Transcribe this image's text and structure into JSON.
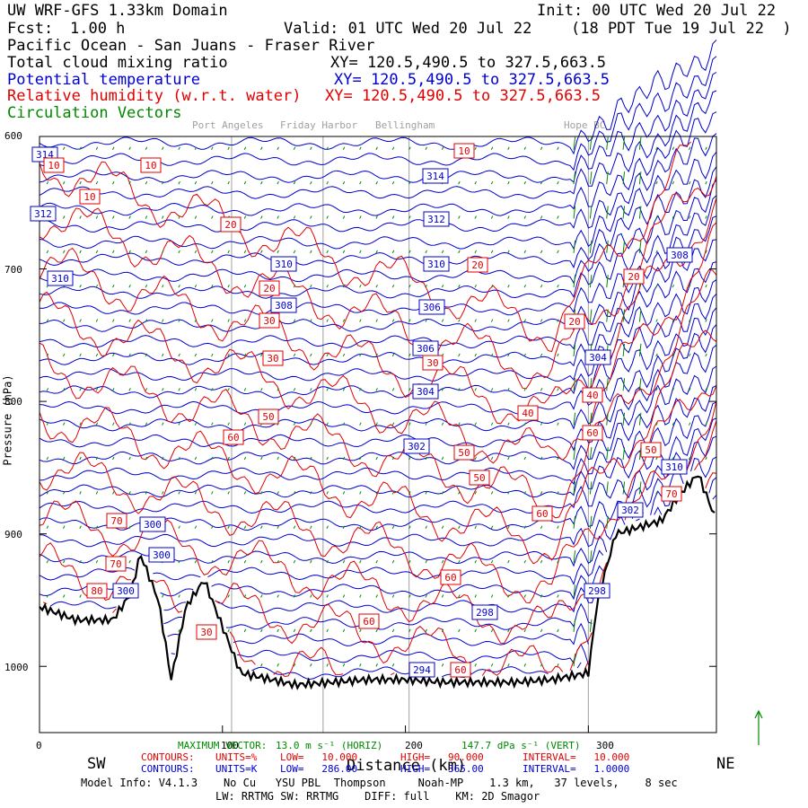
{
  "header": {
    "domain_title": "UW WRF-GFS 1.33km Domain",
    "init": "Init: 00 UTC Wed 20 Jul 22",
    "fcst_label": "Fcst:",
    "fcst_value": "1.00 h",
    "valid": "Valid: 01 UTC Wed 20 Jul 22",
    "valid_local": "(18 PDT Tue 19 Jul 22  )",
    "region": "Pacific Ocean - San Juans - Fraser River",
    "field1": "Total cloud mixing ratio",
    "field1_xy": "XY= 120.5,490.5 to 327.5,663.5",
    "field2": "Potential temperature",
    "field2_xy": "XY= 120.5,490.5 to 327.5,663.5",
    "field3": "Relative humidity (w.r.t. water)",
    "field3_xy": "XY= 120.5,490.5 to 327.5,663.5",
    "field4": "Circulation Vectors",
    "colors": {
      "field1": "#000000",
      "field2": "#0000cc",
      "field3": "#e00000",
      "field4": "#008800"
    }
  },
  "locations": {
    "port_angeles": "Port Angeles",
    "friday_harbor": "Friday Harbor",
    "bellingham": "Bellingham",
    "hope": "Hope BC"
  },
  "axis": {
    "ylabel": "Pressure (hPa)",
    "xlabel": "Distance (km)",
    "left_end": "SW",
    "right_end": "NE"
  },
  "chart_data": {
    "type": "cross-section",
    "ylim": [
      1050,
      600
    ],
    "xlim": [
      0,
      370
    ],
    "yticks": [
      "600",
      "700",
      "800",
      "900",
      "1000"
    ],
    "xticks": [
      "0",
      "100",
      "200",
      "300"
    ],
    "location_lines_km": [
      105,
      155,
      202,
      300
    ],
    "theta_contour_labels": [
      "314",
      "314",
      "312",
      "312",
      "310",
      "310",
      "310",
      "308",
      "308",
      "306",
      "306",
      "304",
      "304",
      "302",
      "300",
      "300",
      "300",
      "298",
      "298",
      "294",
      "310",
      "302"
    ],
    "rh_contour_labels": [
      "10",
      "10",
      "10",
      "10",
      "20",
      "20",
      "20",
      "20",
      "20",
      "30",
      "30",
      "30",
      "40",
      "40",
      "50",
      "50",
      "50",
      "50",
      "60",
      "60",
      "60",
      "60",
      "60",
      "60",
      "70",
      "70",
      "70",
      "80",
      "30"
    ],
    "terrain_hpa_samples": [
      [
        0,
        955
      ],
      [
        20,
        965
      ],
      [
        40,
        965
      ],
      [
        50,
        945
      ],
      [
        55,
        915
      ],
      [
        65,
        950
      ],
      [
        72,
        1010
      ],
      [
        80,
        955
      ],
      [
        90,
        935
      ],
      [
        100,
        970
      ],
      [
        110,
        1005
      ],
      [
        140,
        1014
      ],
      [
        160,
        1012
      ],
      [
        180,
        1010
      ],
      [
        200,
        1010
      ],
      [
        220,
        1012
      ],
      [
        260,
        1012
      ],
      [
        280,
        1010
      ],
      [
        300,
        1005
      ],
      [
        305,
        950
      ],
      [
        315,
        900
      ],
      [
        340,
        890
      ],
      [
        350,
        870
      ],
      [
        360,
        855
      ],
      [
        370,
        890
      ]
    ],
    "grid": true
  },
  "footer": {
    "max_vector_label": "MAXIMUM VECTOR:",
    "max_vector_horiz": "13.0 m s⁻¹ (HORIZ)",
    "max_vector_vert": "147.7 dPa s⁻¹ (VERT)",
    "rh_contours": {
      "label": "CONTOURS:",
      "units": "UNITS=%",
      "low": "LOW=   10.000",
      "high": "HIGH=   90.000",
      "interval": "INTERVAL=   10.000"
    },
    "theta_contours": {
      "label": "CONTOURS:",
      "units": "UNITS=K",
      "low": "LOW=   286.00",
      "high": "HIGH=   365.00",
      "interval": "INTERVAL=   1.0000"
    },
    "model_info": "Model Info: V4.1.3    No Cu   YSU PBL  Thompson     Noah-MP    1.3 km,   37 levels,    8 sec",
    "model_info2": "LW: RRTMG SW: RRTMG    DIFF: full    KM: 2D Smagor"
  }
}
